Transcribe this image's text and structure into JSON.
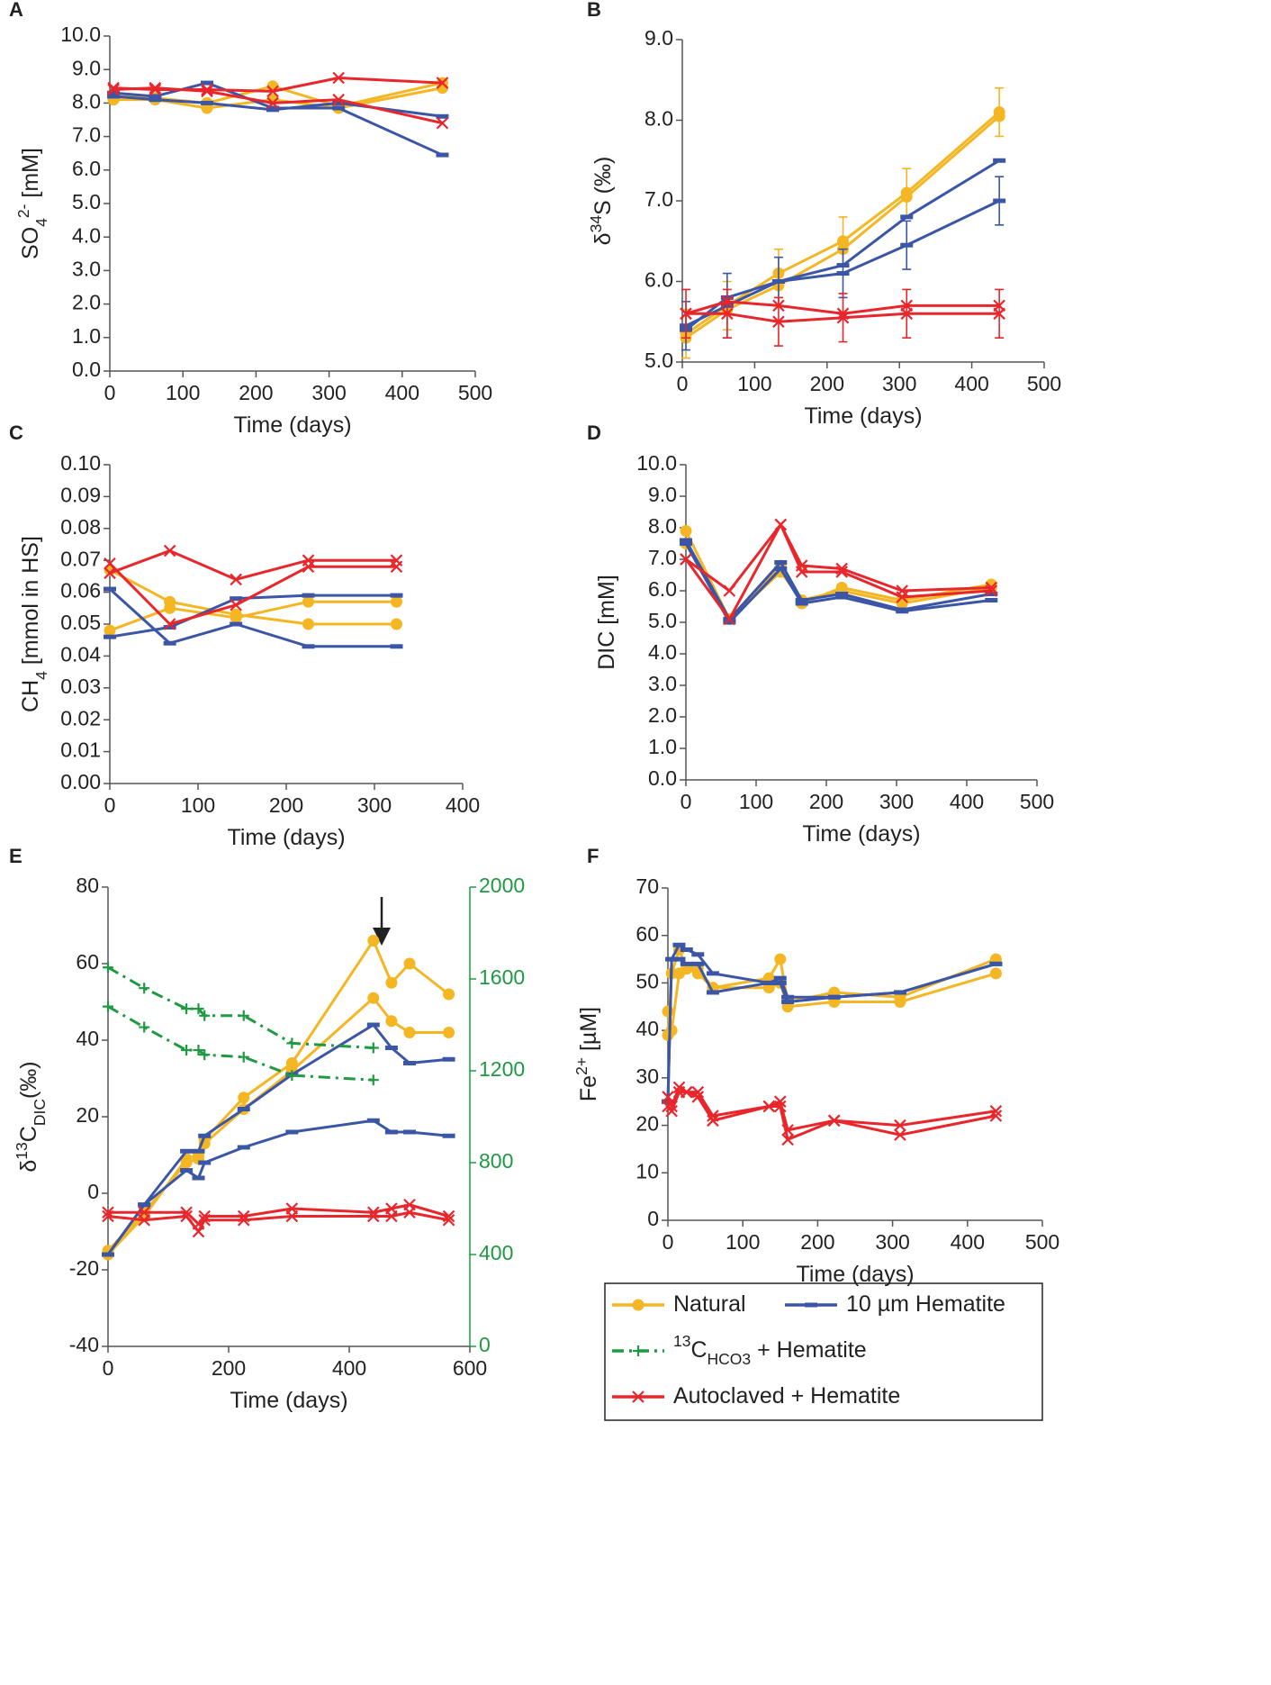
{
  "chart_data": [
    {
      "type": "line",
      "panel": "A",
      "xlabel": "Time (days)",
      "ylabel": [
        {
          "text": "SO"
        },
        {
          "text": "4",
          "shift": "sub"
        },
        {
          "text": "2-",
          "shift": "sup"
        },
        {
          "text": " [mM]"
        }
      ],
      "xlim": [
        0,
        500
      ],
      "xticks": [
        0,
        100,
        200,
        300,
        400,
        500
      ],
      "ylim": [
        0,
        10
      ],
      "yticks": [
        {
          "value": 0,
          "label": "0.0"
        },
        {
          "value": 1,
          "label": "1.0"
        },
        {
          "value": 2,
          "label": "2.0"
        },
        {
          "value": 3,
          "label": "3.0"
        },
        {
          "value": 4,
          "label": "4.0"
        },
        {
          "value": 5,
          "label": "5.0"
        },
        {
          "value": 6,
          "label": "6.0"
        },
        {
          "value": 7,
          "label": "7.0"
        },
        {
          "value": 8,
          "label": "8.0"
        },
        {
          "value": 9,
          "label": "9.0"
        },
        {
          "value": 10,
          "label": "10.0"
        }
      ],
      "x": [
        5,
        62,
        133,
        223,
        313,
        455
      ],
      "series": [
        {
          "color": "#f4b623",
          "marker": "circle",
          "values": [
            8.2,
            8.15,
            8.0,
            8.5,
            7.9,
            8.6
          ]
        },
        {
          "color": "#f4b623",
          "marker": "circle",
          "values": [
            8.1,
            8.1,
            7.85,
            8.1,
            7.85,
            8.45
          ]
        },
        {
          "color": "#3b56a6",
          "marker": "bar",
          "values": [
            8.3,
            8.2,
            8.6,
            7.85,
            7.85,
            6.45
          ]
        },
        {
          "color": "#3b56a6",
          "marker": "bar",
          "values": [
            8.2,
            8.1,
            8.0,
            7.8,
            8.0,
            7.6
          ]
        },
        {
          "color": "#e8262b",
          "marker": "x",
          "values": [
            8.45,
            8.4,
            8.4,
            8.35,
            8.75,
            8.6
          ]
        },
        {
          "color": "#e8262b",
          "marker": "x",
          "values": [
            8.4,
            8.45,
            8.35,
            8.0,
            8.1,
            7.4
          ]
        }
      ]
    },
    {
      "type": "line",
      "panel": "B",
      "xlabel": "Time (days)",
      "ylabel": [
        {
          "text": "δ"
        },
        {
          "text": "34",
          "shift": "sup"
        },
        {
          "text": "S (‰)"
        }
      ],
      "xlim": [
        0,
        500
      ],
      "xticks": [
        0,
        100,
        200,
        300,
        400,
        500
      ],
      "ylim": [
        5,
        9
      ],
      "yticks": [
        {
          "value": 5,
          "label": "5.0"
        },
        {
          "value": 6,
          "label": "6.0"
        },
        {
          "value": 7,
          "label": "7.0"
        },
        {
          "value": 8,
          "label": "8.0"
        },
        {
          "value": 9,
          "label": "9.0"
        }
      ],
      "x": [
        5,
        62,
        133,
        222,
        310,
        438
      ],
      "series": [
        {
          "color": "#f4b623",
          "marker": "circle",
          "values": [
            5.35,
            5.7,
            6.1,
            6.5,
            7.1,
            8.1
          ],
          "errors": [
            0.3,
            0.3,
            0.3,
            0.3,
            0.3,
            0.3
          ]
        },
        {
          "color": "#f4b623",
          "marker": "circle",
          "values": [
            5.3,
            5.65,
            5.95,
            6.4,
            7.05,
            8.05
          ]
        },
        {
          "color": "#3b56a6",
          "marker": "bar",
          "values": [
            5.4,
            5.8,
            6.0,
            6.2,
            6.8,
            7.5
          ]
        },
        {
          "color": "#3b56a6",
          "marker": "bar",
          "values": [
            5.45,
            5.7,
            6.0,
            6.1,
            6.45,
            7.0
          ],
          "errors": [
            0.3,
            0.4,
            0.3,
            0.3,
            0.3,
            0.3
          ]
        },
        {
          "color": "#e8262b",
          "marker": "x",
          "values": [
            5.6,
            5.75,
            5.7,
            5.6,
            5.7,
            5.7
          ]
        },
        {
          "color": "#e8262b",
          "marker": "x",
          "values": [
            5.6,
            5.6,
            5.5,
            5.55,
            5.6,
            5.6
          ],
          "errors": [
            0.3,
            0.3,
            0.3,
            0.3,
            0.3,
            0.3
          ]
        }
      ]
    },
    {
      "type": "line",
      "panel": "C",
      "xlabel": "Time (days)",
      "ylabel": [
        {
          "text": "CH"
        },
        {
          "text": "4",
          "shift": "sub"
        },
        {
          "text": " [mmol in HS]"
        }
      ],
      "xlim": [
        0,
        400
      ],
      "xticks": [
        0,
        100,
        200,
        300,
        400
      ],
      "ylim": [
        0,
        0.1
      ],
      "yticks": [
        {
          "value": 0,
          "label": "0.00"
        },
        {
          "value": 0.01,
          "label": "0.01"
        },
        {
          "value": 0.02,
          "label": "0.02"
        },
        {
          "value": 0.03,
          "label": "0.03"
        },
        {
          "value": 0.04,
          "label": "0.04"
        },
        {
          "value": 0.05,
          "label": "0.05"
        },
        {
          "value": 0.06,
          "label": "0.06"
        },
        {
          "value": 0.07,
          "label": "0.07"
        },
        {
          "value": 0.08,
          "label": "0.08"
        },
        {
          "value": 0.09,
          "label": "0.09"
        },
        {
          "value": 0.1,
          "label": "0.10"
        }
      ],
      "x": [
        0,
        68,
        143,
        225,
        325
      ],
      "series": [
        {
          "color": "#f4b623",
          "marker": "circle",
          "values": [
            0.067,
            0.057,
            0.053,
            0.05,
            0.05
          ]
        },
        {
          "color": "#f4b623",
          "marker": "circle",
          "values": [
            0.048,
            0.055,
            0.052,
            0.057,
            0.057
          ]
        },
        {
          "color": "#3b56a6",
          "marker": "bar",
          "values": [
            0.061,
            0.044,
            0.05,
            0.043,
            0.043
          ]
        },
        {
          "color": "#3b56a6",
          "marker": "bar",
          "values": [
            0.046,
            0.049,
            0.058,
            0.059,
            0.059
          ]
        },
        {
          "color": "#e8262b",
          "marker": "x",
          "values": [
            0.066,
            0.073,
            0.064,
            0.07,
            0.07
          ]
        },
        {
          "color": "#e8262b",
          "marker": "x",
          "values": [
            0.069,
            0.05,
            0.056,
            0.068,
            0.068
          ]
        }
      ]
    },
    {
      "type": "line",
      "panel": "D",
      "xlabel": "Time (days)",
      "ylabel": [
        {
          "text": "DIC [mM]"
        }
      ],
      "xlim": [
        0,
        500
      ],
      "xticks": [
        0,
        100,
        200,
        300,
        400,
        500
      ],
      "ylim": [
        0,
        10
      ],
      "yticks": [
        {
          "value": 0,
          "label": "0.0"
        },
        {
          "value": 1,
          "label": "1.0"
        },
        {
          "value": 2,
          "label": "2.0"
        },
        {
          "value": 3,
          "label": "3.0"
        },
        {
          "value": 4,
          "label": "4.0"
        },
        {
          "value": 5,
          "label": "5.0"
        },
        {
          "value": 6,
          "label": "6.0"
        },
        {
          "value": 7,
          "label": "7.0"
        },
        {
          "value": 8,
          "label": "8.0"
        },
        {
          "value": 9,
          "label": "9.0"
        },
        {
          "value": 10,
          "label": "10.0"
        }
      ],
      "x": [
        0,
        62,
        135,
        165,
        222,
        308,
        435
      ],
      "series": [
        {
          "color": "#f4b623",
          "marker": "circle",
          "values": [
            7.9,
            5.1,
            6.8,
            5.6,
            6.1,
            5.7,
            6.2
          ]
        },
        {
          "color": "#f4b623",
          "marker": "circle",
          "values": [
            7.5,
            5.1,
            6.6,
            5.7,
            6.0,
            5.6,
            6.1
          ]
        },
        {
          "color": "#3b56a6",
          "marker": "bar",
          "values": [
            7.6,
            5.1,
            6.9,
            5.7,
            5.9,
            5.4,
            5.9
          ]
        },
        {
          "color": "#3b56a6",
          "marker": "bar",
          "values": [
            7.5,
            5.0,
            6.7,
            5.6,
            5.8,
            5.35,
            5.7
          ]
        },
        {
          "color": "#e8262b",
          "marker": "x",
          "values": [
            7.0,
            6.0,
            8.1,
            6.8,
            6.7,
            6.0,
            6.1
          ]
        },
        {
          "color": "#e8262b",
          "marker": "x",
          "values": [
            7.0,
            5.1,
            8.1,
            6.6,
            6.6,
            5.8,
            6.0
          ]
        }
      ]
    },
    {
      "type": "line",
      "panel": "E",
      "xlabel": "Time (days)",
      "ylabel": [
        {
          "text": "δ"
        },
        {
          "text": "13",
          "shift": "sup"
        },
        {
          "text": "C"
        },
        {
          "text": "DIC",
          "shift": "sub"
        },
        {
          "text": "(‰)"
        }
      ],
      "xlim": [
        0,
        600
      ],
      "xticks": [
        0,
        200,
        400,
        600
      ],
      "ylim": [
        -40,
        80
      ],
      "yticks": [
        -40,
        -20,
        0,
        20,
        40,
        60,
        80
      ],
      "y2lim": [
        0,
        2000
      ],
      "y2ticks": [
        0,
        400,
        800,
        1200,
        1600,
        2000
      ],
      "y2color": "#1f9a43",
      "x": [
        0,
        60,
        130,
        150,
        160,
        225,
        305,
        440,
        470,
        500,
        565
      ],
      "series": [
        {
          "color": "#f4b623",
          "marker": "circle",
          "values": [
            -16,
            -6,
            9,
            10,
            14,
            25,
            34,
            66,
            55,
            60,
            52
          ]
        },
        {
          "color": "#f4b623",
          "marker": "circle",
          "values": [
            -15,
            -5,
            8,
            9,
            13,
            22,
            32,
            51,
            45,
            42,
            42
          ]
        },
        {
          "color": "#3b56a6",
          "marker": "bar",
          "values": [
            -16,
            -3,
            11,
            11,
            15,
            22,
            31,
            44,
            38,
            34,
            35
          ]
        },
        {
          "color": "#3b56a6",
          "marker": "bar",
          "values": [
            -16,
            -3,
            6,
            4,
            8,
            12,
            16,
            19,
            16,
            16,
            15
          ]
        },
        {
          "color": "#e8262b",
          "marker": "x",
          "values": [
            -5,
            -5,
            -5,
            -8,
            -6,
            -6,
            -4,
            -5,
            -4,
            -3,
            -6
          ]
        },
        {
          "color": "#e8262b",
          "marker": "x",
          "values": [
            -6,
            -7,
            -6,
            -10,
            -7,
            -7,
            -6,
            -6,
            -6,
            -5,
            -7
          ]
        },
        {
          "color": "#1f9a43",
          "marker": "plus",
          "dash": "dashdot",
          "axis": "y2",
          "x": [
            0,
            60,
            130,
            150,
            160,
            225,
            305,
            440
          ],
          "values": [
            1650,
            1560,
            1470,
            1470,
            1440,
            1440,
            1320,
            1300
          ]
        },
        {
          "color": "#1f9a43",
          "marker": "plus",
          "dash": "dashdot",
          "axis": "y2",
          "x": [
            0,
            60,
            130,
            150,
            160,
            225,
            305,
            440
          ],
          "values": [
            1480,
            1390,
            1290,
            1290,
            1270,
            1260,
            1180,
            1160
          ]
        }
      ]
    },
    {
      "type": "line",
      "panel": "F",
      "xlabel": "Time (days)",
      "ylabel": [
        {
          "text": "Fe"
        },
        {
          "text": "2+",
          "shift": "sup"
        },
        {
          "text": " [µM]"
        }
      ],
      "xlim": [
        0,
        500
      ],
      "xticks": [
        0,
        100,
        200,
        300,
        400,
        500
      ],
      "ylim": [
        0,
        70
      ],
      "yticks": [
        0,
        10,
        20,
        30,
        40,
        50,
        60,
        70
      ],
      "x": [
        0,
        5,
        15,
        25,
        40,
        60,
        135,
        150,
        160,
        222,
        310,
        438
      ],
      "series": [
        {
          "color": "#f4b623",
          "marker": "circle",
          "values": [
            39,
            52,
            57,
            53,
            53,
            49,
            51,
            55,
            46,
            48,
            47,
            55
          ]
        },
        {
          "color": "#f4b623",
          "marker": "circle",
          "values": [
            44,
            40,
            52,
            53,
            52,
            49,
            49,
            50,
            45,
            46,
            46,
            52
          ]
        },
        {
          "color": "#3b56a6",
          "marker": "bar",
          "values": [
            25,
            55,
            58,
            57,
            56,
            52,
            50,
            51,
            47,
            47,
            48,
            54
          ]
        },
        {
          "color": "#3b56a6",
          "marker": "bar",
          "values": [
            25,
            55,
            55,
            54,
            54,
            48,
            50,
            50,
            46,
            47,
            48,
            54
          ]
        },
        {
          "color": "#e8262b",
          "marker": "x",
          "values": [
            26,
            24,
            28,
            27,
            27,
            22,
            24,
            25,
            19,
            21,
            20,
            23
          ]
        },
        {
          "color": "#e8262b",
          "marker": "x",
          "values": [
            24,
            23,
            27,
            27,
            26,
            21,
            24,
            24,
            17,
            21,
            18,
            22
          ]
        }
      ]
    }
  ],
  "legend": [
    {
      "label": [
        {
          "text": "Natural"
        }
      ],
      "color": "#f4b623",
      "marker": "circle"
    },
    {
      "label": [
        {
          "text": "10 µm Hematite"
        }
      ],
      "color": "#3b56a6",
      "marker": "bar"
    },
    {
      "label": [
        {
          "text": "13",
          "shift": "sup"
        },
        {
          "text": "C"
        },
        {
          "text": "HCO3",
          "shift": "sub"
        },
        {
          "text": " + Hematite"
        }
      ],
      "color": "#1f9a43",
      "marker": "plus",
      "dash": "dashdot"
    },
    {
      "label": [
        {
          "text": "Autoclaved + Hematite"
        }
      ],
      "color": "#e8262b",
      "marker": "x"
    }
  ]
}
